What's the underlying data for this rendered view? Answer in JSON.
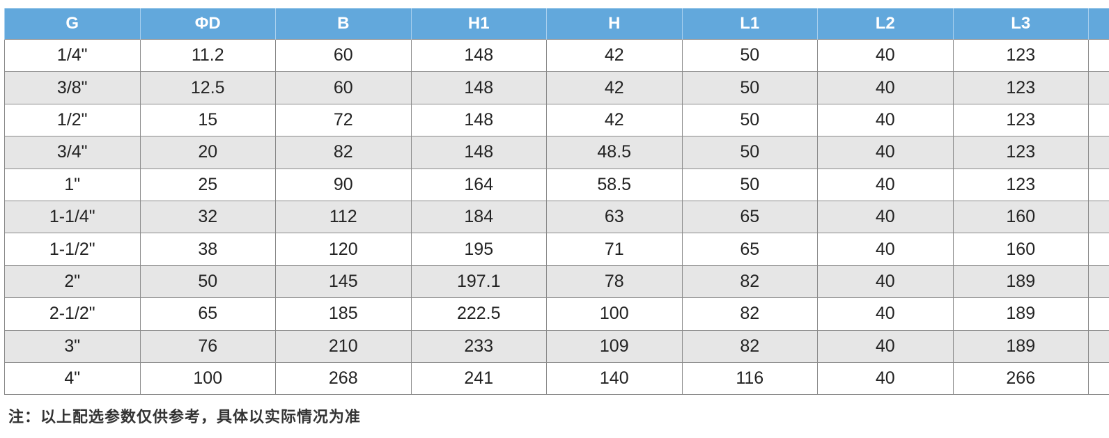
{
  "table": {
    "headers": [
      "G",
      "ΦD",
      "B",
      "H1",
      "H",
      "L1",
      "L2",
      "L3"
    ],
    "rows": [
      [
        "1/4\"",
        "11.2",
        "60",
        "148",
        "42",
        "50",
        "40",
        "123"
      ],
      [
        "3/8\"",
        "12.5",
        "60",
        "148",
        "42",
        "50",
        "40",
        "123"
      ],
      [
        "1/2\"",
        "15",
        "72",
        "148",
        "42",
        "50",
        "40",
        "123"
      ],
      [
        "3/4\"",
        "20",
        "82",
        "148",
        "48.5",
        "50",
        "40",
        "123"
      ],
      [
        "1\"",
        "25",
        "90",
        "164",
        "58.5",
        "50",
        "40",
        "123"
      ],
      [
        "1-1/4\"",
        "32",
        "112",
        "184",
        "63",
        "65",
        "40",
        "160"
      ],
      [
        "1-1/2\"",
        "38",
        "120",
        "195",
        "71",
        "65",
        "40",
        "160"
      ],
      [
        "2\"",
        "50",
        "145",
        "197.1",
        "78",
        "82",
        "40",
        "189"
      ],
      [
        "2-1/2\"",
        "65",
        "185",
        "222.5",
        "100",
        "82",
        "40",
        "189"
      ],
      [
        "3\"",
        "76",
        "210",
        "233",
        "109",
        "82",
        "40",
        "189"
      ],
      [
        "4\"",
        "100",
        "268",
        "241",
        "140",
        "116",
        "40",
        "266"
      ]
    ]
  },
  "note": "注：以上配选参数仅供参考，具体以实际情况为准",
  "colors": {
    "header_bg": "#62a8dc",
    "alt_row_bg": "#e6e6e6"
  }
}
